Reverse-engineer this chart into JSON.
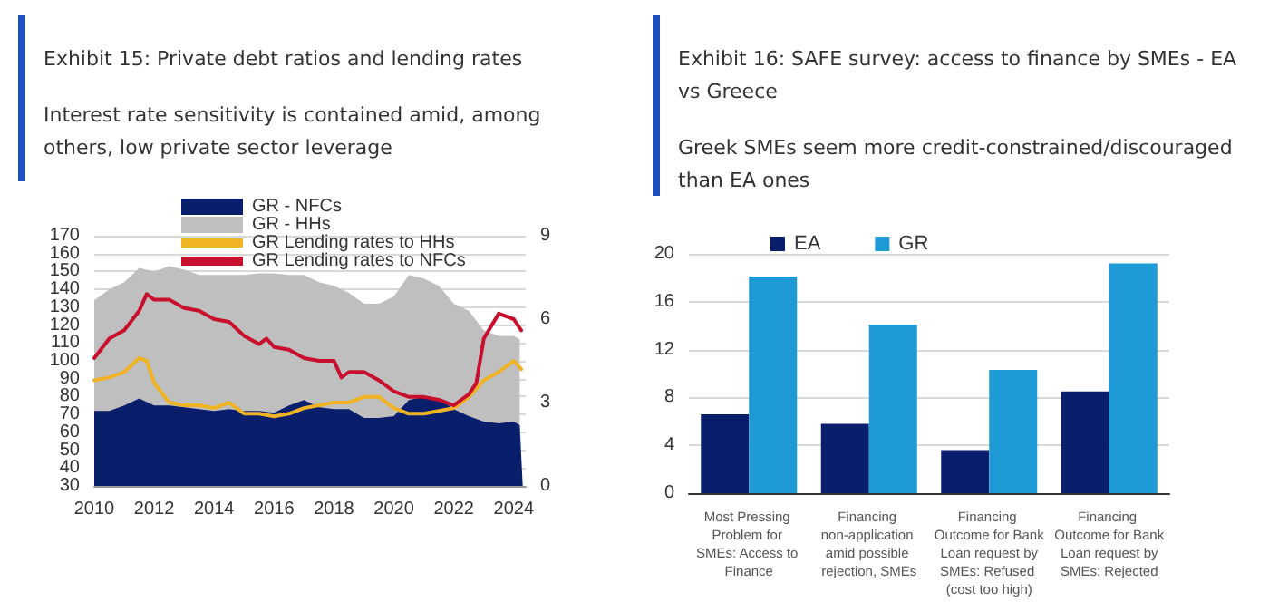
{
  "chart_data": [
    {
      "type": "area",
      "title": "Exhibit 15: Private debt ratios and lending rates",
      "subtitle": "Interest rate sensitivity is contained amid, among others, low private sector leverage",
      "stacked": true,
      "marker": "none",
      "line_style": "solid",
      "legend": "top",
      "grid": "y",
      "x": [
        2010,
        2010.5,
        2011,
        2011.5,
        2012,
        2012.5,
        2013,
        2013.5,
        2014,
        2014.5,
        2015,
        2015.5,
        2016,
        2016.5,
        2017,
        2017.5,
        2018,
        2018.5,
        2019,
        2019.5,
        2020,
        2020.5,
        2021,
        2021.5,
        2022,
        2022.5,
        2023,
        2023.5,
        2024,
        2024.2,
        2024.3
      ],
      "series": [
        {
          "name": "GR - NFCs",
          "color": "#0a1f6b",
          "values": [
            72,
            72,
            75,
            79,
            75,
            75,
            74,
            73,
            72,
            73,
            72,
            72,
            71,
            75,
            78,
            74,
            73,
            73,
            68,
            68,
            69,
            78,
            80,
            79,
            73,
            69,
            66,
            65,
            66,
            64,
            30
          ]
        },
        {
          "name": "GR - HHs",
          "color": "#bfbfbf",
          "values": [
            62,
            68,
            69,
            73,
            75,
            78,
            77,
            75,
            76,
            75,
            76,
            77,
            78,
            73,
            70,
            70,
            69,
            65,
            64,
            64,
            67,
            70,
            66,
            63,
            59,
            59,
            51,
            49,
            48,
            48,
            null
          ]
        },
        {
          "name": "GR Lending rates to HHs",
          "type": "line",
          "axis": "y2",
          "color": "#f0b323",
          "x": [
            2010,
            2010.5,
            2011,
            2011.5,
            2011.75,
            2012,
            2012.5,
            2013,
            2013.5,
            2014,
            2014.5,
            2015,
            2015.5,
            2016,
            2016.5,
            2017,
            2017.5,
            2018,
            2018.5,
            2019,
            2019.5,
            2020,
            2020.5,
            2021,
            2021.5,
            2022,
            2022.5,
            2023,
            2023.5,
            2024,
            2024.25
          ],
          "values": [
            3.8,
            3.9,
            4.1,
            4.6,
            4.5,
            3.7,
            3.0,
            2.9,
            2.9,
            2.8,
            3.0,
            2.6,
            2.6,
            2.5,
            2.6,
            2.8,
            2.9,
            3.0,
            3.0,
            3.2,
            3.2,
            2.8,
            2.6,
            2.6,
            2.7,
            2.8,
            3.2,
            3.8,
            4.1,
            4.5,
            4.2
          ]
        },
        {
          "name": "GR Lending rates to NFCs",
          "type": "line",
          "axis": "y2",
          "color": "#c8102e",
          "x": [
            2010,
            2010.5,
            2011,
            2011.5,
            2011.75,
            2012,
            2012.5,
            2013,
            2013.5,
            2014,
            2014.5,
            2015,
            2015.5,
            2015.75,
            2016,
            2016.5,
            2017,
            2017.5,
            2018,
            2018.25,
            2018.5,
            2019,
            2019.5,
            2020,
            2020.5,
            2021,
            2021.5,
            2022,
            2022.5,
            2022.75,
            2023,
            2023.5,
            2024,
            2024.25
          ],
          "values": [
            4.6,
            5.3,
            5.6,
            6.3,
            6.9,
            6.7,
            6.7,
            6.4,
            6.3,
            6.0,
            5.9,
            5.4,
            5.1,
            5.3,
            5.0,
            4.9,
            4.6,
            4.5,
            4.5,
            3.9,
            4.1,
            4.1,
            3.8,
            3.4,
            3.2,
            3.2,
            3.1,
            2.9,
            3.3,
            3.7,
            5.3,
            6.2,
            6.0,
            5.6
          ]
        }
      ],
      "xlim": [
        2010,
        2024.4
      ],
      "xticks": [
        2010,
        2012,
        2014,
        2016,
        2018,
        2020,
        2022,
        2024
      ],
      "ylim": [
        30,
        170
      ],
      "yticks": [
        30,
        40,
        50,
        60,
        70,
        80,
        90,
        100,
        110,
        120,
        130,
        140,
        150,
        160,
        170
      ],
      "y2lim": [
        0,
        9
      ],
      "y2ticks": [
        0,
        3,
        6,
        9
      ]
    },
    {
      "type": "bar",
      "title": "Exhibit 16: SAFE survey: access to finance by SMEs - EA vs Greece",
      "subtitle": "Greek SMEs seem more credit-constrained/discouraged than EA ones",
      "legend": "top",
      "grid": "y",
      "categories": [
        "Most Pressing Problem for SMEs: Access to Finance",
        "Financing non-application amid possible rejection, SMEs",
        "Financing Outcome for Bank Loan request by SMEs: Refused (cost too high)",
        "Financing Outcome for Bank Loan request by SMEs: Rejected"
      ],
      "series": [
        {
          "name": "EA",
          "color": "#0a1f6b",
          "values": [
            6.6,
            5.8,
            3.6,
            8.5
          ]
        },
        {
          "name": "GR",
          "color": "#1e9ad6",
          "values": [
            18.1,
            14.1,
            10.3,
            19.2
          ]
        }
      ],
      "ylim": [
        0,
        20
      ],
      "yticks": [
        0,
        4,
        8,
        12,
        16,
        20
      ]
    }
  ]
}
